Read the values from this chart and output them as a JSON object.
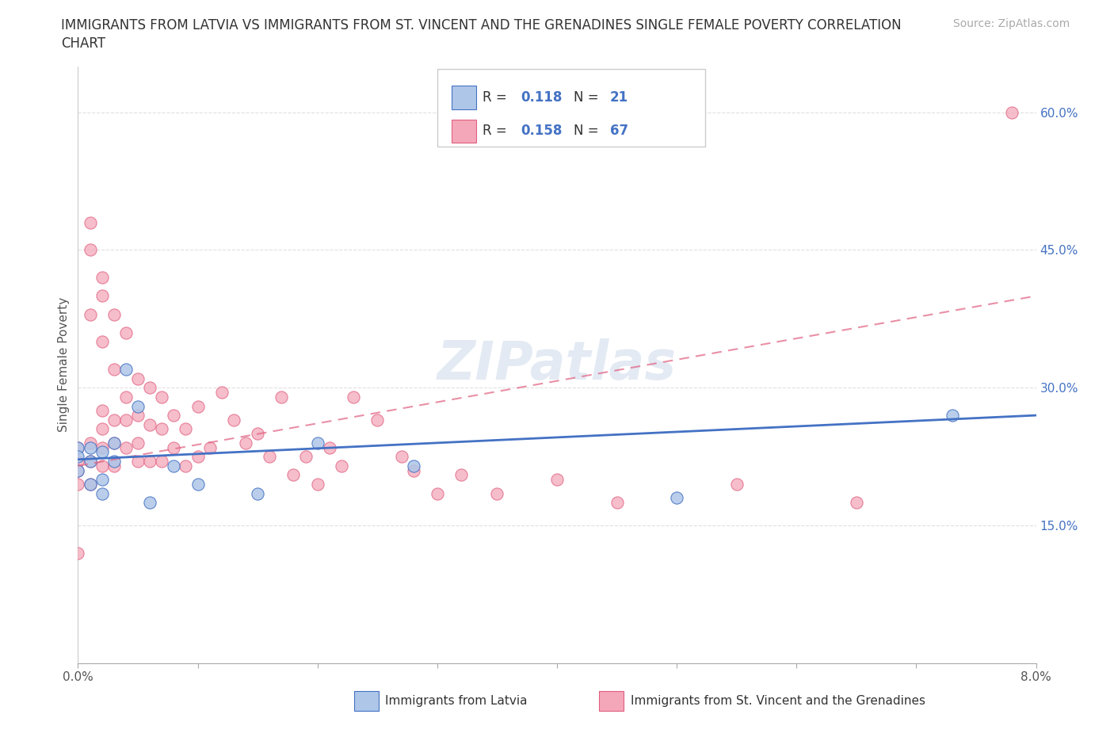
{
  "title_line1": "IMMIGRANTS FROM LATVIA VS IMMIGRANTS FROM ST. VINCENT AND THE GRENADINES SINGLE FEMALE POVERTY CORRELATION",
  "title_line2": "CHART",
  "source": "Source: ZipAtlas.com",
  "ylabel": "Single Female Poverty",
  "y_ticks": [
    0.15,
    0.3,
    0.45,
    0.6
  ],
  "y_tick_labels": [
    "15.0%",
    "30.0%",
    "45.0%",
    "60.0%"
  ],
  "xlim": [
    0.0,
    0.08
  ],
  "ylim": [
    0.0,
    0.65
  ],
  "watermark": "ZIPatlas",
  "R_latvia": 0.118,
  "N_latvia": 21,
  "R_svg": 0.158,
  "N_svg": 67,
  "latvia_color": "#aec6e8",
  "svg_color": "#f4a7b9",
  "latvia_line_color": "#4472c4",
  "svg_line_color": "#e06080",
  "svg_dash_color": "#d0a0b0",
  "latvia_points_x": [
    0.0,
    0.0,
    0.0,
    0.001,
    0.001,
    0.001,
    0.002,
    0.002,
    0.002,
    0.003,
    0.003,
    0.004,
    0.005,
    0.006,
    0.008,
    0.01,
    0.015,
    0.02,
    0.028,
    0.05,
    0.073
  ],
  "latvia_points_y": [
    0.235,
    0.225,
    0.21,
    0.235,
    0.22,
    0.195,
    0.23,
    0.2,
    0.185,
    0.24,
    0.22,
    0.32,
    0.28,
    0.175,
    0.215,
    0.195,
    0.185,
    0.24,
    0.215,
    0.18,
    0.27
  ],
  "svg_points_x": [
    0.0,
    0.0,
    0.0,
    0.0,
    0.0,
    0.001,
    0.001,
    0.001,
    0.001,
    0.001,
    0.001,
    0.002,
    0.002,
    0.002,
    0.002,
    0.002,
    0.002,
    0.002,
    0.003,
    0.003,
    0.003,
    0.003,
    0.003,
    0.004,
    0.004,
    0.004,
    0.004,
    0.005,
    0.005,
    0.005,
    0.005,
    0.006,
    0.006,
    0.006,
    0.007,
    0.007,
    0.007,
    0.008,
    0.008,
    0.009,
    0.009,
    0.01,
    0.01,
    0.011,
    0.012,
    0.013,
    0.014,
    0.015,
    0.016,
    0.017,
    0.018,
    0.019,
    0.02,
    0.021,
    0.022,
    0.023,
    0.025,
    0.027,
    0.028,
    0.03,
    0.032,
    0.035,
    0.04,
    0.045,
    0.055,
    0.065,
    0.078
  ],
  "svg_points_y": [
    0.235,
    0.22,
    0.21,
    0.195,
    0.12,
    0.48,
    0.45,
    0.38,
    0.24,
    0.22,
    0.195,
    0.42,
    0.4,
    0.35,
    0.275,
    0.255,
    0.235,
    0.215,
    0.38,
    0.32,
    0.265,
    0.24,
    0.215,
    0.36,
    0.29,
    0.265,
    0.235,
    0.31,
    0.27,
    0.24,
    0.22,
    0.3,
    0.26,
    0.22,
    0.29,
    0.255,
    0.22,
    0.27,
    0.235,
    0.255,
    0.215,
    0.28,
    0.225,
    0.235,
    0.295,
    0.265,
    0.24,
    0.25,
    0.225,
    0.29,
    0.205,
    0.225,
    0.195,
    0.235,
    0.215,
    0.29,
    0.265,
    0.225,
    0.21,
    0.185,
    0.205,
    0.185,
    0.2,
    0.175,
    0.195,
    0.175,
    0.6
  ],
  "title_fontsize": 12,
  "axis_label_fontsize": 11,
  "tick_fontsize": 11,
  "source_fontsize": 10,
  "watermark_fontsize": 48,
  "scatter_size": 120,
  "background_color": "#ffffff",
  "grid_color": "#e0e0e0",
  "right_tick_color": "#4472c4",
  "legend_label1": "Immigrants from Latvia",
  "legend_label2": "Immigrants from St. Vincent and the Grenadines"
}
